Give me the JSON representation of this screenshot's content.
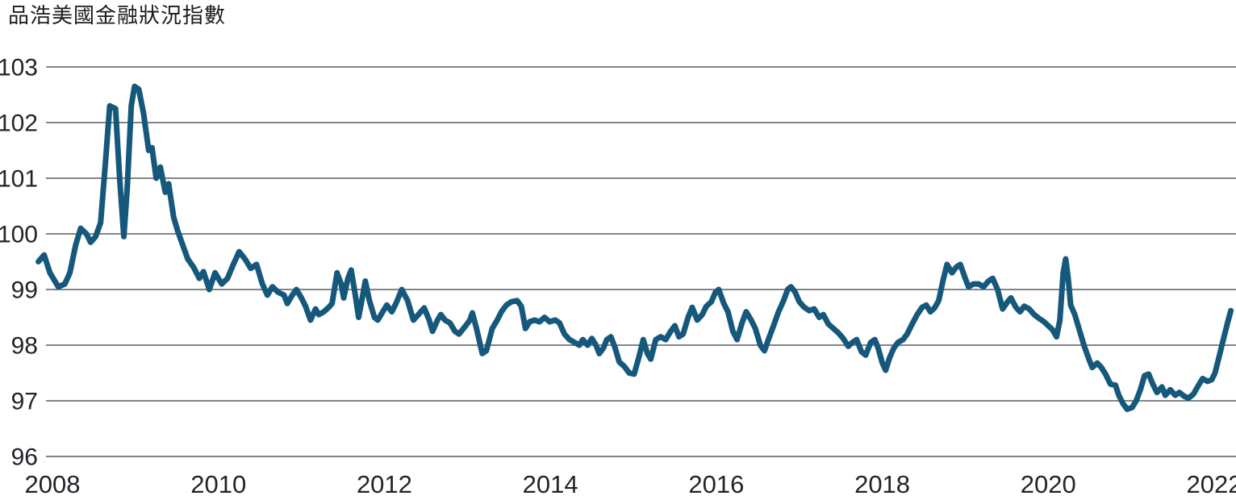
{
  "title": "品浩美國金融狀況指數",
  "colors": {
    "line": "#16587C",
    "grid": "#595D61",
    "text": "#212429",
    "background": "#FFFFFF"
  },
  "chart_data": {
    "type": "line",
    "title": "品浩美國金融狀況指數",
    "series": [
      {
        "name": "品浩美國金融狀況指數"
      }
    ],
    "xlabel": "",
    "ylabel": "",
    "x_ticks": [
      2008,
      2010,
      2012,
      2014,
      2016,
      2018,
      2020,
      2022
    ],
    "y_ticks": [
      103,
      102,
      101,
      100,
      99,
      98,
      97,
      96
    ],
    "ylim": [
      96,
      103
    ],
    "xlim": [
      2007.8,
      2022.3
    ],
    "grid": "horizontal",
    "legend_position": "none",
    "points": [
      [
        2007.83,
        99.5
      ],
      [
        2007.9,
        99.62
      ],
      [
        2007.97,
        99.3
      ],
      [
        2008.07,
        99.05
      ],
      [
        2008.15,
        99.1
      ],
      [
        2008.21,
        99.3
      ],
      [
        2008.28,
        99.8
      ],
      [
        2008.34,
        100.1
      ],
      [
        2008.41,
        100.0
      ],
      [
        2008.46,
        99.85
      ],
      [
        2008.52,
        99.95
      ],
      [
        2008.58,
        100.2
      ],
      [
        2008.64,
        101.3
      ],
      [
        2008.69,
        102.3
      ],
      [
        2008.76,
        102.25
      ],
      [
        2008.81,
        101.0
      ],
      [
        2008.86,
        99.95
      ],
      [
        2008.9,
        100.8
      ],
      [
        2008.95,
        102.3
      ],
      [
        2008.99,
        102.65
      ],
      [
        2009.04,
        102.6
      ],
      [
        2009.1,
        102.15
      ],
      [
        2009.16,
        101.5
      ],
      [
        2009.2,
        101.55
      ],
      [
        2009.25,
        101.0
      ],
      [
        2009.3,
        101.2
      ],
      [
        2009.36,
        100.75
      ],
      [
        2009.4,
        100.9
      ],
      [
        2009.46,
        100.3
      ],
      [
        2009.51,
        100.05
      ],
      [
        2009.57,
        99.8
      ],
      [
        2009.63,
        99.55
      ],
      [
        2009.7,
        99.4
      ],
      [
        2009.77,
        99.2
      ],
      [
        2009.82,
        99.32
      ],
      [
        2009.89,
        99.0
      ],
      [
        2009.96,
        99.3
      ],
      [
        2010.04,
        99.1
      ],
      [
        2010.11,
        99.2
      ],
      [
        2010.18,
        99.45
      ],
      [
        2010.25,
        99.68
      ],
      [
        2010.32,
        99.55
      ],
      [
        2010.39,
        99.38
      ],
      [
        2010.46,
        99.45
      ],
      [
        2010.53,
        99.1
      ],
      [
        2010.59,
        98.9
      ],
      [
        2010.65,
        99.05
      ],
      [
        2010.72,
        98.95
      ],
      [
        2010.79,
        98.9
      ],
      [
        2010.83,
        98.75
      ],
      [
        2010.89,
        98.9
      ],
      [
        2010.94,
        99.0
      ],
      [
        2011.0,
        98.85
      ],
      [
        2011.05,
        98.7
      ],
      [
        2011.11,
        98.45
      ],
      [
        2011.17,
        98.65
      ],
      [
        2011.21,
        98.55
      ],
      [
        2011.27,
        98.6
      ],
      [
        2011.33,
        98.68
      ],
      [
        2011.37,
        98.75
      ],
      [
        2011.43,
        99.3
      ],
      [
        2011.48,
        99.1
      ],
      [
        2011.51,
        98.85
      ],
      [
        2011.56,
        99.2
      ],
      [
        2011.6,
        99.35
      ],
      [
        2011.65,
        98.9
      ],
      [
        2011.69,
        98.5
      ],
      [
        2011.74,
        98.9
      ],
      [
        2011.77,
        99.15
      ],
      [
        2011.82,
        98.8
      ],
      [
        2011.88,
        98.5
      ],
      [
        2011.92,
        98.45
      ],
      [
        2011.98,
        98.6
      ],
      [
        2012.03,
        98.72
      ],
      [
        2012.09,
        98.6
      ],
      [
        2012.14,
        98.75
      ],
      [
        2012.21,
        99.0
      ],
      [
        2012.28,
        98.8
      ],
      [
        2012.35,
        98.45
      ],
      [
        2012.41,
        98.55
      ],
      [
        2012.48,
        98.67
      ],
      [
        2012.54,
        98.45
      ],
      [
        2012.58,
        98.25
      ],
      [
        2012.64,
        98.45
      ],
      [
        2012.68,
        98.55
      ],
      [
        2012.73,
        98.45
      ],
      [
        2012.79,
        98.4
      ],
      [
        2012.85,
        98.25
      ],
      [
        2012.9,
        98.2
      ],
      [
        2012.98,
        98.35
      ],
      [
        2013.03,
        98.45
      ],
      [
        2013.06,
        98.58
      ],
      [
        2013.11,
        98.3
      ],
      [
        2013.18,
        97.85
      ],
      [
        2013.23,
        97.9
      ],
      [
        2013.3,
        98.3
      ],
      [
        2013.36,
        98.45
      ],
      [
        2013.41,
        98.6
      ],
      [
        2013.47,
        98.72
      ],
      [
        2013.53,
        98.78
      ],
      [
        2013.6,
        98.8
      ],
      [
        2013.65,
        98.7
      ],
      [
        2013.7,
        98.3
      ],
      [
        2013.75,
        98.42
      ],
      [
        2013.81,
        98.45
      ],
      [
        2013.87,
        98.42
      ],
      [
        2013.93,
        98.5
      ],
      [
        2013.99,
        98.42
      ],
      [
        2014.06,
        98.45
      ],
      [
        2014.11,
        98.4
      ],
      [
        2014.17,
        98.2
      ],
      [
        2014.23,
        98.1
      ],
      [
        2014.29,
        98.05
      ],
      [
        2014.35,
        98.0
      ],
      [
        2014.39,
        98.1
      ],
      [
        2014.45,
        98.0
      ],
      [
        2014.5,
        98.12
      ],
      [
        2014.55,
        98.0
      ],
      [
        2014.59,
        97.85
      ],
      [
        2014.64,
        97.95
      ],
      [
        2014.68,
        98.1
      ],
      [
        2014.73,
        98.15
      ],
      [
        2014.78,
        97.95
      ],
      [
        2014.83,
        97.7
      ],
      [
        2014.89,
        97.62
      ],
      [
        2014.95,
        97.5
      ],
      [
        2015.01,
        97.48
      ],
      [
        2015.07,
        97.8
      ],
      [
        2015.12,
        98.1
      ],
      [
        2015.17,
        97.85
      ],
      [
        2015.21,
        97.75
      ],
      [
        2015.27,
        98.1
      ],
      [
        2015.33,
        98.15
      ],
      [
        2015.39,
        98.1
      ],
      [
        2015.45,
        98.25
      ],
      [
        2015.5,
        98.35
      ],
      [
        2015.55,
        98.15
      ],
      [
        2015.6,
        98.2
      ],
      [
        2015.66,
        98.5
      ],
      [
        2015.71,
        98.68
      ],
      [
        2015.77,
        98.45
      ],
      [
        2015.83,
        98.55
      ],
      [
        2015.88,
        98.7
      ],
      [
        2015.94,
        98.78
      ],
      [
        2015.99,
        98.95
      ],
      [
        2016.03,
        99.0
      ],
      [
        2016.09,
        98.75
      ],
      [
        2016.14,
        98.6
      ],
      [
        2016.2,
        98.25
      ],
      [
        2016.25,
        98.1
      ],
      [
        2016.31,
        98.4
      ],
      [
        2016.36,
        98.6
      ],
      [
        2016.42,
        98.45
      ],
      [
        2016.47,
        98.3
      ],
      [
        2016.53,
        98.0
      ],
      [
        2016.58,
        97.9
      ],
      [
        2016.64,
        98.15
      ],
      [
        2016.69,
        98.35
      ],
      [
        2016.75,
        98.6
      ],
      [
        2016.81,
        98.8
      ],
      [
        2016.86,
        99.0
      ],
      [
        2016.9,
        99.05
      ],
      [
        2016.95,
        98.95
      ],
      [
        2017.0,
        98.78
      ],
      [
        2017.06,
        98.68
      ],
      [
        2017.12,
        98.62
      ],
      [
        2017.18,
        98.65
      ],
      [
        2017.24,
        98.5
      ],
      [
        2017.29,
        98.55
      ],
      [
        2017.35,
        98.38
      ],
      [
        2017.41,
        98.3
      ],
      [
        2017.47,
        98.22
      ],
      [
        2017.53,
        98.12
      ],
      [
        2017.59,
        97.98
      ],
      [
        2017.64,
        98.05
      ],
      [
        2017.69,
        98.1
      ],
      [
        2017.75,
        97.88
      ],
      [
        2017.8,
        97.82
      ],
      [
        2017.86,
        98.05
      ],
      [
        2017.91,
        98.1
      ],
      [
        2017.95,
        97.95
      ],
      [
        2018.0,
        97.68
      ],
      [
        2018.04,
        97.55
      ],
      [
        2018.09,
        97.78
      ],
      [
        2018.14,
        97.95
      ],
      [
        2018.19,
        98.05
      ],
      [
        2018.25,
        98.1
      ],
      [
        2018.3,
        98.2
      ],
      [
        2018.36,
        98.38
      ],
      [
        2018.42,
        98.55
      ],
      [
        2018.48,
        98.68
      ],
      [
        2018.53,
        98.72
      ],
      [
        2018.58,
        98.6
      ],
      [
        2018.63,
        98.67
      ],
      [
        2018.68,
        98.8
      ],
      [
        2018.73,
        99.15
      ],
      [
        2018.78,
        99.45
      ],
      [
        2018.84,
        99.3
      ],
      [
        2018.89,
        99.4
      ],
      [
        2018.94,
        99.45
      ],
      [
        2019.0,
        99.2
      ],
      [
        2019.04,
        99.05
      ],
      [
        2019.1,
        99.1
      ],
      [
        2019.16,
        99.1
      ],
      [
        2019.22,
        99.05
      ],
      [
        2019.28,
        99.15
      ],
      [
        2019.33,
        99.2
      ],
      [
        2019.39,
        99.0
      ],
      [
        2019.45,
        98.65
      ],
      [
        2019.51,
        98.78
      ],
      [
        2019.55,
        98.85
      ],
      [
        2019.61,
        98.68
      ],
      [
        2019.66,
        98.6
      ],
      [
        2019.71,
        98.7
      ],
      [
        2019.77,
        98.65
      ],
      [
        2019.83,
        98.55
      ],
      [
        2019.89,
        98.48
      ],
      [
        2019.95,
        98.42
      ],
      [
        2020.0,
        98.35
      ],
      [
        2020.05,
        98.28
      ],
      [
        2020.1,
        98.15
      ],
      [
        2020.14,
        98.45
      ],
      [
        2020.18,
        99.3
      ],
      [
        2020.21,
        99.55
      ],
      [
        2020.24,
        99.2
      ],
      [
        2020.27,
        98.72
      ],
      [
        2020.32,
        98.55
      ],
      [
        2020.37,
        98.3
      ],
      [
        2020.43,
        98.0
      ],
      [
        2020.49,
        97.75
      ],
      [
        2020.53,
        97.6
      ],
      [
        2020.59,
        97.68
      ],
      [
        2020.64,
        97.6
      ],
      [
        2020.69,
        97.48
      ],
      [
        2020.75,
        97.3
      ],
      [
        2020.81,
        97.28
      ],
      [
        2020.85,
        97.1
      ],
      [
        2020.9,
        96.95
      ],
      [
        2020.95,
        96.85
      ],
      [
        2021.01,
        96.88
      ],
      [
        2021.06,
        97.0
      ],
      [
        2021.11,
        97.2
      ],
      [
        2021.16,
        97.45
      ],
      [
        2021.21,
        97.48
      ],
      [
        2021.26,
        97.3
      ],
      [
        2021.31,
        97.15
      ],
      [
        2021.37,
        97.25
      ],
      [
        2021.41,
        97.1
      ],
      [
        2021.47,
        97.2
      ],
      [
        2021.53,
        97.1
      ],
      [
        2021.58,
        97.15
      ],
      [
        2021.64,
        97.08
      ],
      [
        2021.69,
        97.05
      ],
      [
        2021.75,
        97.12
      ],
      [
        2021.81,
        97.28
      ],
      [
        2021.86,
        97.4
      ],
      [
        2021.92,
        97.35
      ],
      [
        2021.97,
        97.38
      ],
      [
        2022.01,
        97.5
      ],
      [
        2022.06,
        97.8
      ],
      [
        2022.11,
        98.1
      ],
      [
        2022.16,
        98.4
      ],
      [
        2022.2,
        98.62
      ]
    ]
  }
}
